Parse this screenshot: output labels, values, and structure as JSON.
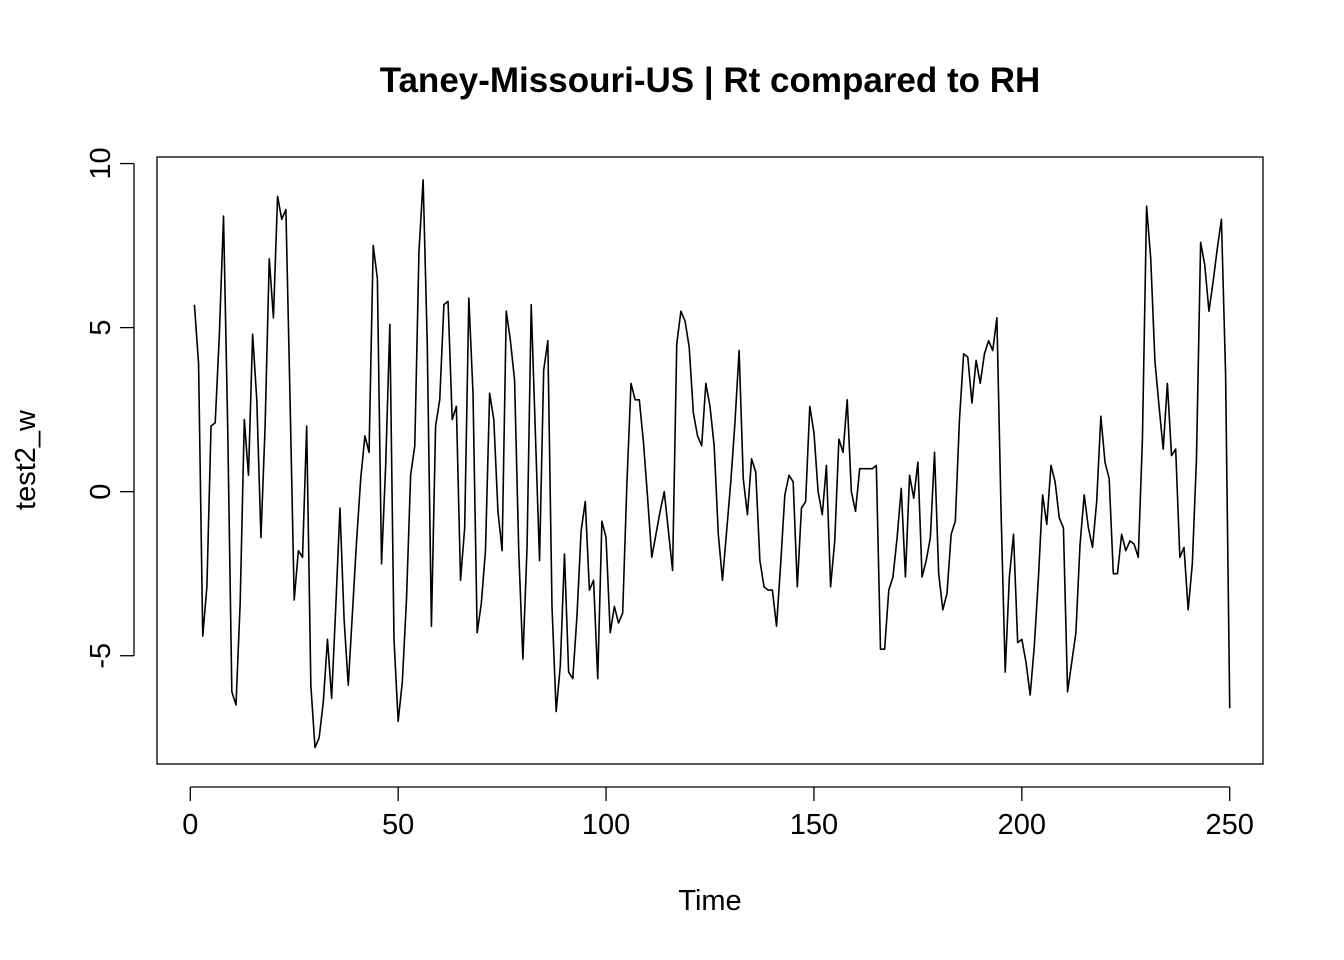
{
  "chart_data": {
    "type": "line",
    "title": "Taney-Missouri-US | Rt compared to RH",
    "xlabel": "Time",
    "ylabel": "test2_w",
    "xlim": [
      -8,
      258
    ],
    "ylim": [
      -8.3,
      10.2
    ],
    "x_ticks": [
      0,
      50,
      100,
      150,
      200,
      250
    ],
    "y_ticks": [
      -5,
      0,
      5,
      10
    ],
    "grid": false,
    "legend": "none",
    "line_color": "#000000",
    "x_start": 1,
    "values": [
      5.7,
      3.9,
      -4.4,
      -2.9,
      2.0,
      2.1,
      4.8,
      8.4,
      2.0,
      -6.1,
      -6.5,
      -3.4,
      2.2,
      0.5,
      4.8,
      2.8,
      -1.4,
      2.0,
      7.1,
      5.3,
      9.0,
      8.3,
      8.6,
      2.8,
      -3.3,
      -1.8,
      -2.0,
      2.0,
      -5.9,
      -7.8,
      -7.5,
      -6.4,
      -4.5,
      -6.3,
      -3.5,
      -0.5,
      -3.9,
      -5.9,
      -3.7,
      -1.5,
      0.4,
      1.7,
      1.2,
      7.5,
      6.5,
      -2.2,
      0.8,
      5.1,
      -4.5,
      -7.0,
      -5.8,
      -3.3,
      0.5,
      1.4,
      7.3,
      9.5,
      4.5,
      -4.1,
      2.0,
      2.8,
      5.7,
      5.8,
      2.2,
      2.6,
      -2.7,
      -1.1,
      5.9,
      3.0,
      -4.3,
      -3.4,
      -1.8,
      3.0,
      2.2,
      -0.6,
      -1.8,
      5.5,
      4.6,
      3.4,
      -1.8,
      -5.1,
      -1.7,
      5.7,
      1.8,
      -2.1,
      3.7,
      4.6,
      -3.5,
      -6.7,
      -5.3,
      -1.9,
      -5.5,
      -5.7,
      -3.8,
      -1.2,
      -0.3,
      -3.0,
      -2.7,
      -5.7,
      -0.9,
      -1.4,
      -4.3,
      -3.5,
      -4.0,
      -3.7,
      0.2,
      3.3,
      2.8,
      2.8,
      1.5,
      -0.2,
      -2.0,
      -1.3,
      -0.6,
      0.0,
      -1.2,
      -2.4,
      4.5,
      5.5,
      5.2,
      4.4,
      2.4,
      1.7,
      1.4,
      3.3,
      2.6,
      1.4,
      -1.3,
      -2.7,
      -1.2,
      0.3,
      2.1,
      4.3,
      0.4,
      -0.7,
      1.0,
      0.6,
      -2.1,
      -2.9,
      -3.0,
      -3.0,
      -4.1,
      -2.2,
      -0.1,
      0.5,
      0.3,
      -2.9,
      -0.5,
      -0.3,
      2.6,
      1.8,
      0.0,
      -0.7,
      0.8,
      -2.9,
      -1.5,
      1.6,
      1.2,
      2.8,
      0.0,
      -0.6,
      0.7,
      0.7,
      0.7,
      0.7,
      0.8,
      -4.8,
      -4.8,
      -3.0,
      -2.6,
      -1.4,
      0.1,
      -2.6,
      0.5,
      -0.2,
      0.9,
      -2.6,
      -2.1,
      -1.4,
      1.2,
      -2.5,
      -3.6,
      -3.1,
      -1.3,
      -0.9,
      2.2,
      4.2,
      4.1,
      2.7,
      4.0,
      3.3,
      4.2,
      4.6,
      4.3,
      5.3,
      -0.6,
      -5.5,
      -2.6,
      -1.3,
      -4.6,
      -4.5,
      -5.2,
      -6.2,
      -4.7,
      -2.6,
      -0.1,
      -1.0,
      0.8,
      0.3,
      -0.8,
      -1.1,
      -6.1,
      -5.2,
      -4.3,
      -1.6,
      -0.1,
      -1.1,
      -1.7,
      -0.3,
      2.3,
      0.9,
      0.4,
      -2.5,
      -2.5,
      -1.3,
      -1.8,
      -1.5,
      -1.6,
      -2.0,
      1.6,
      8.7,
      7.1,
      4.0,
      2.6,
      1.3,
      3.3,
      1.1,
      1.3,
      -2.0,
      -1.7,
      -3.6,
      -2.2,
      1.0,
      7.6,
      6.9,
      5.5,
      6.4,
      7.4,
      8.3,
      3.6,
      -6.6
    ]
  }
}
